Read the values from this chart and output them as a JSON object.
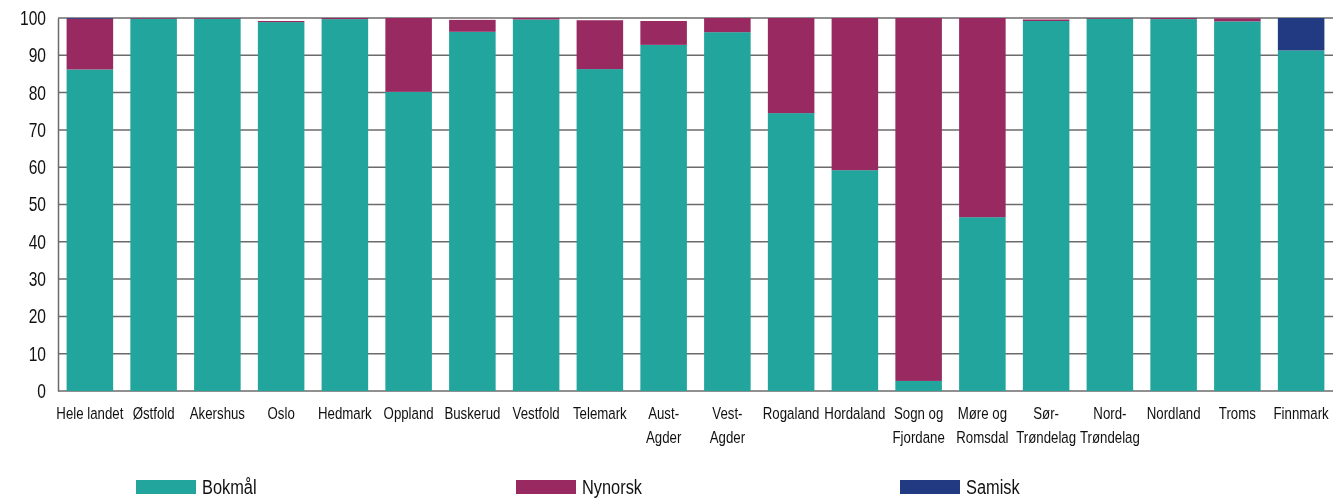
{
  "chart_data": {
    "type": "bar",
    "stacked": true,
    "categories": [
      "Hele landet",
      "Østfold",
      "Akershus",
      "Oslo",
      "Hedmark",
      "Oppland",
      "Buskerud",
      "Vestfold",
      "Telemark",
      "Aust-Agder",
      "Vest-Agder",
      "Rogaland",
      "Hordaland",
      "Sogn og Fjordane",
      "Møre og Romsdal",
      "Sør-Trøndelag",
      "Nord-Trøndelag",
      "Nordland",
      "Troms",
      "Finnmark"
    ],
    "series": [
      {
        "name": "Bokmål",
        "color": "#21a59c",
        "values": [
          86.2,
          99.8,
          99.8,
          98.9,
          99.7,
          80.2,
          96.3,
          99.6,
          86.3,
          92.8,
          96.2,
          74.5,
          59.2,
          2.7,
          46.6,
          99.2,
          99.8,
          99.7,
          99.1,
          91.3
        ]
      },
      {
        "name": "Nynorsk",
        "color": "#992a61",
        "values": [
          13.6,
          0.2,
          0.2,
          0.3,
          0.3,
          19.8,
          3.2,
          0.4,
          13.1,
          6.4,
          3.8,
          25.5,
          40.8,
          97.3,
          53.4,
          0.4,
          0.2,
          0.3,
          0.8,
          0
        ]
      },
      {
        "name": "Samisk",
        "color": "#213a82",
        "values": [
          0.2,
          0,
          0,
          0,
          0,
          0,
          0,
          0,
          0,
          0,
          0,
          0,
          0,
          0,
          0,
          0,
          0,
          0,
          0,
          8.7
        ]
      }
    ],
    "ylim": [
      0,
      100
    ],
    "yticks": [
      0,
      10,
      20,
      30,
      40,
      50,
      60,
      70,
      80,
      90,
      100
    ],
    "grid": "y",
    "legend": "bottom"
  }
}
